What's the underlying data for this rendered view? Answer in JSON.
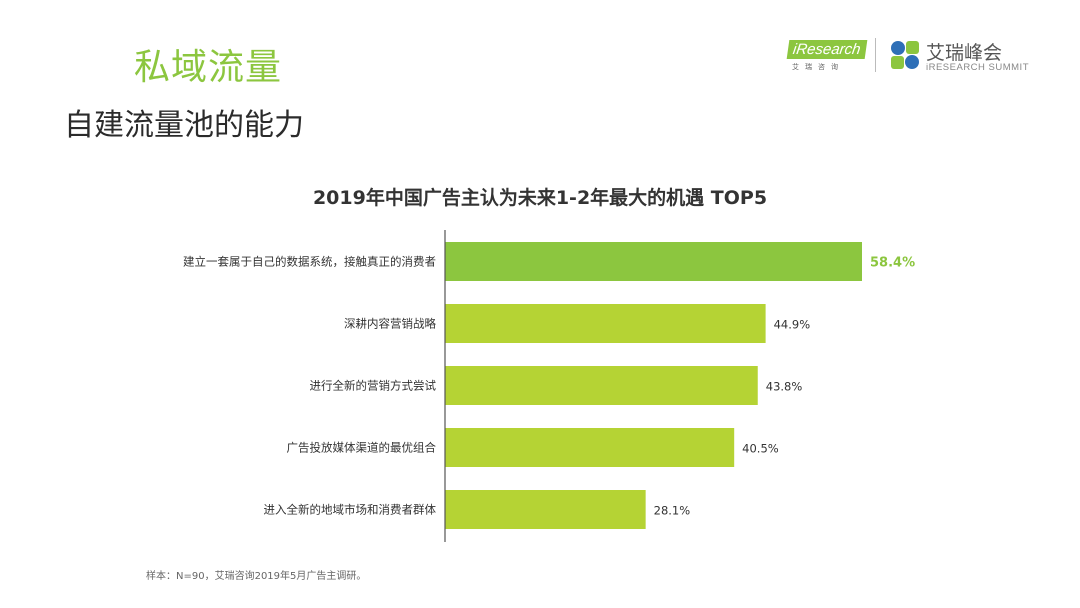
{
  "header": {
    "section_title": "私域流量",
    "slide_title": "自建流量池的能力"
  },
  "logos": {
    "iresearch_word": "iResearch",
    "iresearch_sub": "艾瑞咨询",
    "summit_cn": "艾瑞峰会",
    "summit_en": "iRESEARCH SUMMIT"
  },
  "colors": {
    "accent": "#8cc63f",
    "bar_top": "#8cc63f",
    "bar": "#b5d334",
    "axis": "#555555"
  },
  "chart_data": {
    "type": "bar",
    "orientation": "horizontal",
    "title": "2019年中国广告主认为未来1-2年最大的机遇 TOP5",
    "categories": [
      "建立一套属于自己的数据系统，接触真正的消费者",
      "深耕内容营销战略",
      "进行全新的营销方式尝试",
      "广告投放媒体渠道的最优组合",
      "进入全新的地域市场和消费者群体"
    ],
    "values": [
      58.4,
      44.9,
      43.8,
      40.5,
      28.1
    ],
    "value_labels": [
      "58.4%",
      "44.9%",
      "43.8%",
      "40.5%",
      "28.1%"
    ],
    "unit": "%",
    "xlim": [
      0,
      58.4
    ],
    "grid": false,
    "legend": "none"
  },
  "footnote": "样本：N=90，艾瑞咨询2019年5月广告主调研。"
}
